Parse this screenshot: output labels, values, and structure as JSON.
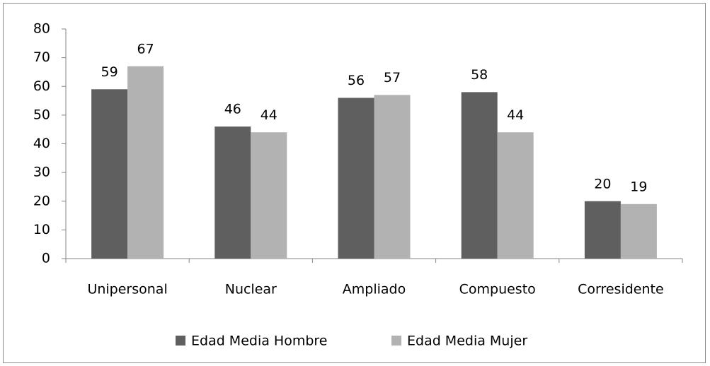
{
  "chart_data": {
    "type": "bar",
    "categories": [
      "Unipersonal",
      "Nuclear",
      "Ampliado",
      "Compuesto",
      "Corresidente"
    ],
    "series": [
      {
        "name": "Edad Media Hombre",
        "color": "#5f5f5f",
        "values": [
          59,
          46,
          56,
          58,
          20
        ]
      },
      {
        "name": "Edad Media Mujer",
        "color": "#b2b2b2",
        "values": [
          67,
          44,
          57,
          44,
          19
        ]
      }
    ],
    "ylim": [
      0,
      80
    ],
    "yticks": [
      0,
      10,
      20,
      30,
      40,
      50,
      60,
      70,
      80
    ],
    "grid": false,
    "legend": "bottom",
    "data_labels": true
  }
}
